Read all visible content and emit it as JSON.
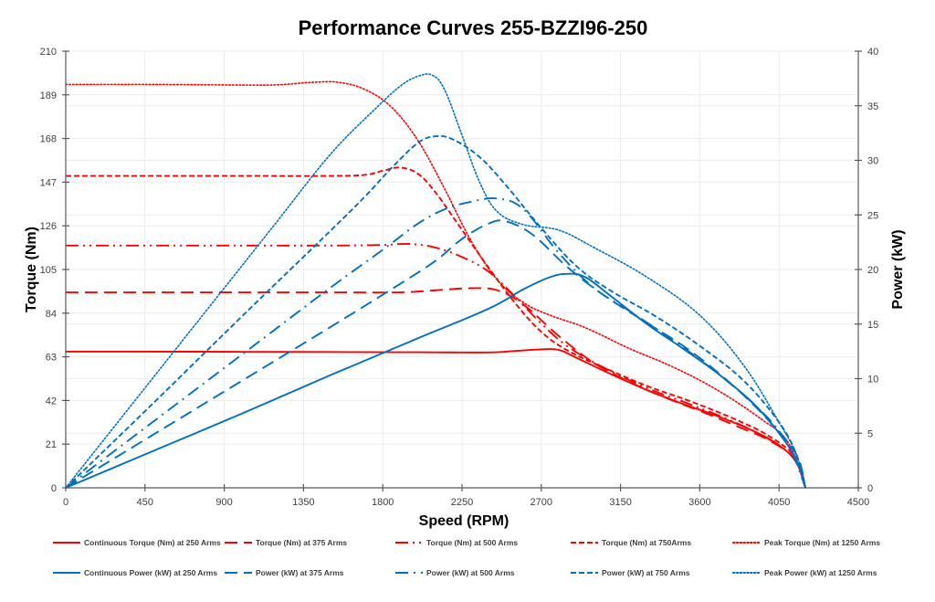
{
  "chart_data": {
    "type": "line",
    "title": "Performance Curves 255-BZZI96-250",
    "xlabel": "Speed (RPM)",
    "ylabel": "Torque (Nm)",
    "y2label": "Power (kW)",
    "xlim": [
      0,
      4500
    ],
    "ylim": [
      0,
      210
    ],
    "y2lim": [
      0,
      40
    ],
    "xticks": [
      "0",
      "450",
      "900",
      "1350",
      "1800",
      "2250",
      "2700",
      "3150",
      "3600",
      "4050",
      "4500"
    ],
    "yticks": [
      "0",
      "21",
      "42",
      "63",
      "84",
      "105",
      "126",
      "147",
      "168",
      "189",
      "210"
    ],
    "y2ticks": [
      "0",
      "5",
      "10",
      "15",
      "20",
      "25",
      "30",
      "35",
      "40"
    ],
    "grid": true,
    "legend_position": "bottom",
    "colors": {
      "torque": "#ff0000",
      "power": "#0070c0"
    },
    "series": [
      {
        "name": "Continuous Torque (Nm) at 250 Arms",
        "axis": "left",
        "color": "#ff0000",
        "style": "solid",
        "x": [
          0,
          500,
          1000,
          1500,
          2000,
          2400,
          2550,
          2700,
          2800,
          2900,
          3100,
          3300,
          3500,
          3700,
          3900,
          4050,
          4150,
          4200
        ],
        "y": [
          65.5,
          65.5,
          65.4,
          65.3,
          65.2,
          65.1,
          65.8,
          66.6,
          66.3,
          62.5,
          54.5,
          47,
          40.5,
          34.5,
          27.5,
          20.5,
          12,
          0
        ]
      },
      {
        "name": "Torque (Nm) at 375 Arms",
        "axis": "left",
        "color": "#ff0000",
        "style": "longdash",
        "x": [
          0,
          500,
          1000,
          1500,
          1900,
          2100,
          2300,
          2450,
          2600,
          2800,
          3000,
          3200,
          3400,
          3600,
          3800,
          4000,
          4150,
          4200
        ],
        "y": [
          94,
          94,
          94,
          94,
          94,
          95,
          96,
          95,
          88,
          73,
          60,
          51,
          43.5,
          37,
          30,
          22.5,
          13,
          0
        ]
      },
      {
        "name": "Torque (Nm) at 500 Arms",
        "axis": "left",
        "color": "#ff0000",
        "style": "dashdotdot",
        "x": [
          0,
          500,
          1000,
          1500,
          1800,
          1950,
          2100,
          2250,
          2400,
          2550,
          2700,
          2850,
          3050,
          3300,
          3550,
          3800,
          4000,
          4150,
          4200
        ],
        "y": [
          116.5,
          116.5,
          116.5,
          116.5,
          116.8,
          117.3,
          115.5,
          111,
          104,
          92,
          79,
          68,
          58,
          48,
          40,
          31.5,
          23,
          13,
          0
        ]
      },
      {
        "name": "Torque (Nm) at 750Arms",
        "axis": "left",
        "color": "#ff0000",
        "style": "shortdash",
        "x": [
          0,
          500,
          1000,
          1500,
          1700,
          1800,
          1900,
          2000,
          2100,
          2250,
          2400,
          2550,
          2700,
          2850,
          3050,
          3300,
          3550,
          3800,
          4000,
          4150,
          4200
        ],
        "y": [
          150,
          150,
          150,
          150,
          150.5,
          152.5,
          154,
          151,
          142,
          124,
          106,
          89,
          75,
          66,
          58,
          49,
          41.5,
          33,
          24.5,
          14,
          0
        ]
      },
      {
        "name": "Peak Torque (Nm) at 1250  Arms",
        "axis": "left",
        "color": "#ff0000",
        "style": "dotted",
        "x": [
          0,
          500,
          1000,
          1200,
          1400,
          1550,
          1700,
          1850,
          2000,
          2150,
          2300,
          2450,
          2600,
          2750,
          2950,
          3200,
          3450,
          3700,
          3950,
          4100,
          4200
        ],
        "y": [
          194,
          194,
          193.7,
          193.8,
          195,
          195,
          191.5,
          183,
          167,
          144,
          119,
          100,
          89,
          83,
          77,
          67,
          58,
          47,
          33,
          22,
          0
        ]
      },
      {
        "name": "Continuous Power (kW) at 250 Arms",
        "axis": "right",
        "color": "#0070c0",
        "style": "solid",
        "x": [
          0,
          500,
          1000,
          1500,
          2000,
          2400,
          2600,
          2750,
          2850,
          2950,
          3100,
          3300,
          3500,
          3700,
          3900,
          4050,
          4150,
          4200
        ],
        "y": [
          0,
          3.4,
          6.8,
          10.3,
          13.7,
          16.4,
          18.2,
          19.3,
          19.6,
          19.3,
          17.5,
          15,
          12.8,
          10.5,
          7.8,
          5,
          2.5,
          0
        ]
      },
      {
        "name": "Power (kW) at 375 Arms",
        "axis": "right",
        "color": "#0070c0",
        "style": "longdash",
        "x": [
          0,
          500,
          1000,
          1500,
          1900,
          2100,
          2250,
          2400,
          2500,
          2650,
          2850,
          3050,
          3300,
          3550,
          3800,
          4000,
          4150,
          4200
        ],
        "y": [
          0,
          4.9,
          9.8,
          14.7,
          18.7,
          20.8,
          22.8,
          24.2,
          24.4,
          23.2,
          20.2,
          17.7,
          15.1,
          12.5,
          9.2,
          6,
          3,
          0
        ]
      },
      {
        "name": "Power (kW) at 500 Arms",
        "axis": "right",
        "color": "#0070c0",
        "style": "dashdot",
        "x": [
          0,
          500,
          1000,
          1500,
          1800,
          2000,
          2150,
          2300,
          2450,
          2600,
          2800,
          3000,
          3200,
          3450,
          3700,
          3950,
          4100,
          4200
        ],
        "y": [
          0,
          6.1,
          12.2,
          18.3,
          21.8,
          24.2,
          25.5,
          26.2,
          26.5,
          25.5,
          21.5,
          18.3,
          16.2,
          13.5,
          10.5,
          7,
          4,
          0
        ]
      },
      {
        "name": "Power (kW) at 750 Arms",
        "axis": "right",
        "color": "#0070c0",
        "style": "shortdash",
        "x": [
          0,
          500,
          1000,
          1500,
          1700,
          1850,
          2000,
          2100,
          2200,
          2350,
          2500,
          2700,
          2900,
          3100,
          3350,
          3600,
          3850,
          4050,
          4150,
          4200
        ],
        "y": [
          0,
          7.8,
          15.7,
          23.5,
          26.7,
          29.3,
          31.6,
          32.2,
          31.9,
          30.3,
          27.7,
          23.8,
          20.3,
          18,
          15.7,
          13,
          9.8,
          6,
          3,
          0
        ]
      },
      {
        "name": "Peak Power (kW) at 1250 Arms",
        "axis": "right",
        "color": "#0070c0",
        "style": "dotted",
        "x": [
          0,
          300,
          600,
          900,
          1200,
          1500,
          1750,
          1900,
          2000,
          2080,
          2150,
          2250,
          2350,
          2450,
          2600,
          2800,
          3000,
          3300,
          3600,
          3850,
          4050,
          4150,
          4200
        ],
        "y": [
          0,
          6.1,
          12.2,
          18.3,
          24.4,
          30.5,
          34.6,
          36.8,
          37.7,
          37.8,
          36.5,
          32.3,
          28,
          25.3,
          24.1,
          23.6,
          22,
          19.3,
          15.8,
          11.2,
          6,
          3,
          0
        ]
      }
    ]
  }
}
